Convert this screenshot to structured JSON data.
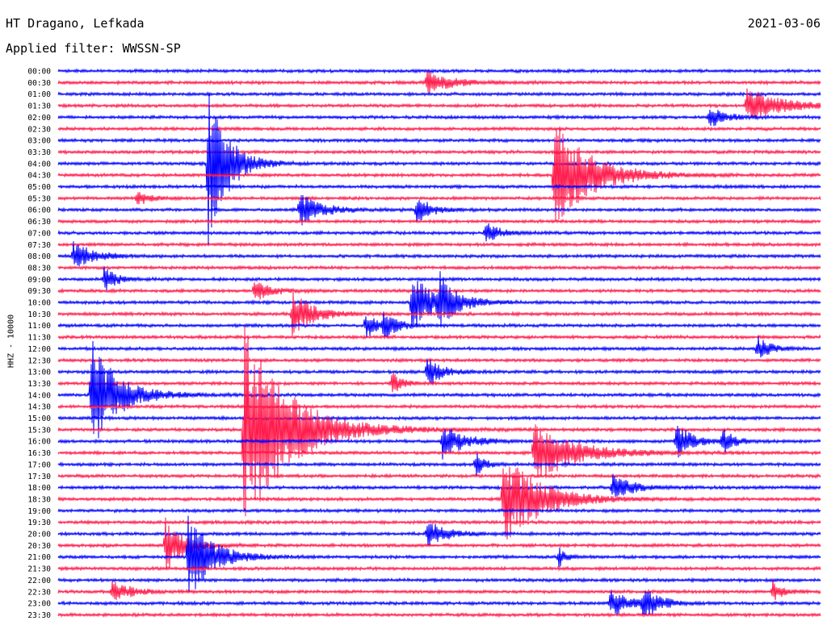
{
  "header": {
    "station": "HT Dragano, Lefkada",
    "filter_text": "Applied filter: WWSSN-SP",
    "date": "2021-03-06"
  },
  "chart_data": {
    "type": "line",
    "ylabel": "HHZ - 10000",
    "row_labels": [
      "00:00",
      "00:30",
      "01:00",
      "01:30",
      "02:00",
      "02:30",
      "03:00",
      "03:30",
      "04:00",
      "04:30",
      "05:00",
      "05:30",
      "06:00",
      "06:30",
      "07:00",
      "07:30",
      "08:00",
      "08:30",
      "09:00",
      "09:30",
      "10:00",
      "10:30",
      "11:00",
      "11:30",
      "12:00",
      "12:30",
      "13:00",
      "13:30",
      "14:00",
      "14:30",
      "15:00",
      "15:30",
      "16:00",
      "16:30",
      "17:00",
      "17:30",
      "18:00",
      "18:30",
      "19:00",
      "19:30",
      "20:00",
      "20:30",
      "21:00",
      "21:30",
      "22:00",
      "22:30",
      "23:00",
      "23:30"
    ],
    "colors": [
      "#0000ff",
      "#ff1a4b"
    ],
    "x_range_minutes": [
      0,
      30
    ],
    "events": [
      {
        "row": 1,
        "minute": 14.5,
        "amp": 15,
        "dur": 1.6
      },
      {
        "row": 3,
        "minute": 27.1,
        "amp": 22,
        "dur": 2.2
      },
      {
        "row": 4,
        "minute": 25.6,
        "amp": 14,
        "dur": 1.0
      },
      {
        "row": 8,
        "minute": 5.9,
        "amp": 110,
        "dur": 1.2
      },
      {
        "row": 9,
        "minute": 19.5,
        "amp": 70,
        "dur": 2.4
      },
      {
        "row": 11,
        "minute": 3.1,
        "amp": 10,
        "dur": 0.8
      },
      {
        "row": 12,
        "minute": 9.5,
        "amp": 22,
        "dur": 1.4
      },
      {
        "row": 12,
        "minute": 14.1,
        "amp": 16,
        "dur": 1.0
      },
      {
        "row": 14,
        "minute": 16.8,
        "amp": 14,
        "dur": 0.9
      },
      {
        "row": 16,
        "minute": 0.6,
        "amp": 18,
        "dur": 1.3
      },
      {
        "row": 18,
        "minute": 1.8,
        "amp": 16,
        "dur": 0.8
      },
      {
        "row": 19,
        "minute": 7.7,
        "amp": 14,
        "dur": 1.0
      },
      {
        "row": 20,
        "minute": 13.9,
        "amp": 38,
        "dur": 1.5
      },
      {
        "row": 20,
        "minute": 15.0,
        "amp": 28,
        "dur": 1.0
      },
      {
        "row": 21,
        "minute": 9.2,
        "amp": 30,
        "dur": 1.3
      },
      {
        "row": 22,
        "minute": 12.1,
        "amp": 18,
        "dur": 0.7
      },
      {
        "row": 22,
        "minute": 12.8,
        "amp": 22,
        "dur": 0.7
      },
      {
        "row": 24,
        "minute": 27.5,
        "amp": 16,
        "dur": 0.8
      },
      {
        "row": 26,
        "minute": 14.5,
        "amp": 20,
        "dur": 1.0
      },
      {
        "row": 27,
        "minute": 13.1,
        "amp": 16,
        "dur": 0.6
      },
      {
        "row": 28,
        "minute": 1.3,
        "amp": 70,
        "dur": 1.8
      },
      {
        "row": 31,
        "minute": 7.3,
        "amp": 130,
        "dur": 3.0
      },
      {
        "row": 32,
        "minute": 15.1,
        "amp": 22,
        "dur": 1.4
      },
      {
        "row": 32,
        "minute": 24.3,
        "amp": 24,
        "dur": 1.0
      },
      {
        "row": 32,
        "minute": 26.1,
        "amp": 16,
        "dur": 0.8
      },
      {
        "row": 33,
        "minute": 18.7,
        "amp": 40,
        "dur": 2.6
      },
      {
        "row": 34,
        "minute": 16.4,
        "amp": 16,
        "dur": 0.6
      },
      {
        "row": 36,
        "minute": 21.8,
        "amp": 18,
        "dur": 1.2
      },
      {
        "row": 37,
        "minute": 17.5,
        "amp": 60,
        "dur": 2.4
      },
      {
        "row": 40,
        "minute": 14.5,
        "amp": 18,
        "dur": 1.2
      },
      {
        "row": 41,
        "minute": 4.2,
        "amp": 35,
        "dur": 1.2
      },
      {
        "row": 42,
        "minute": 5.1,
        "amp": 55,
        "dur": 1.6
      },
      {
        "row": 42,
        "minute": 19.7,
        "amp": 14,
        "dur": 0.4
      },
      {
        "row": 45,
        "minute": 2.1,
        "amp": 16,
        "dur": 1.1
      },
      {
        "row": 45,
        "minute": 28.1,
        "amp": 14,
        "dur": 0.6
      },
      {
        "row": 46,
        "minute": 21.7,
        "amp": 18,
        "dur": 1.2
      },
      {
        "row": 46,
        "minute": 23.0,
        "amp": 22,
        "dur": 1.0
      }
    ]
  }
}
